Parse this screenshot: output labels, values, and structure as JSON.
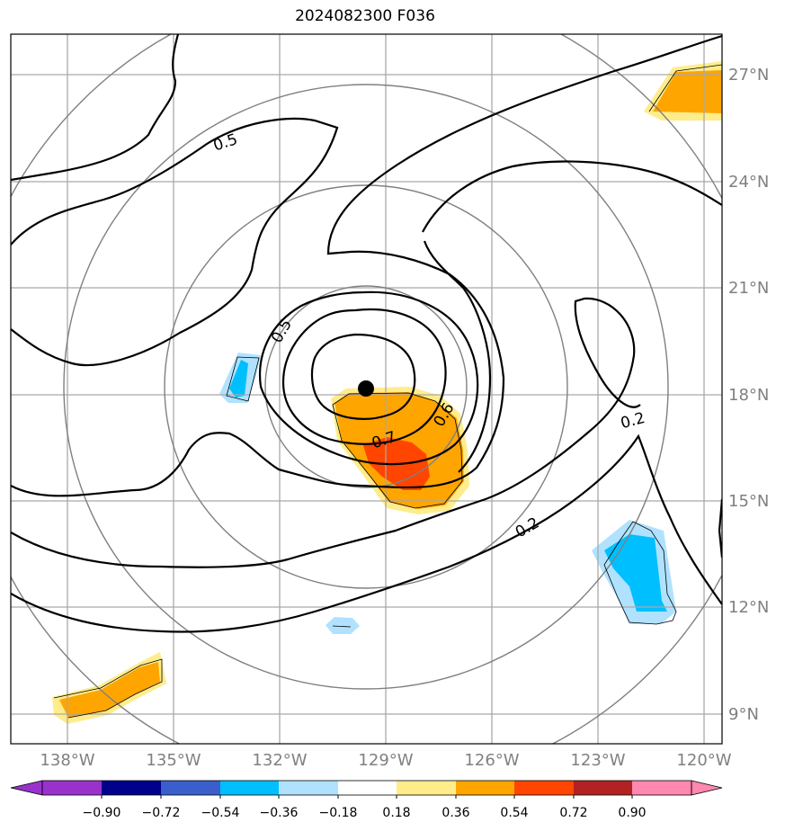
{
  "title": "2024082300 F036",
  "lon_labels": [
    "138°W",
    "135°W",
    "132°W",
    "129°W",
    "126°W",
    "123°W",
    "120°W"
  ],
  "lat_labels": [
    "27°N",
    "24°N",
    "21°N",
    "18°N",
    "15°N",
    "12°N",
    "9°N"
  ],
  "contour_labels": [
    "0.5",
    "0.5",
    "0.7",
    "0.6",
    "0.2",
    "0.2"
  ],
  "colorbar": {
    "tick_labels": [
      "−0.90",
      "−0.72",
      "−0.54",
      "−0.36",
      "−0.18",
      "0.18",
      "0.36",
      "0.54",
      "0.72",
      "0.90"
    ],
    "colors": [
      "#9932cc",
      "#00008b",
      "#3a5fcd",
      "#00bfff",
      "#b0e2ff",
      "#ffffff",
      "#ffec8b",
      "#ffa500",
      "#ff4500",
      "#b22222",
      "#ff88b0"
    ]
  },
  "storm_center": {
    "lon": -129.6,
    "lat": 18.2
  },
  "colors": {
    "warm_light": "#ffec8b",
    "warm_mid": "#ffa500",
    "warm_strong": "#ff4500",
    "cool_light": "#b0e2ff",
    "cool_mid": "#00bfff",
    "grid": "#a9a9a9",
    "range_ring": "#808080",
    "contour": "#000000"
  }
}
